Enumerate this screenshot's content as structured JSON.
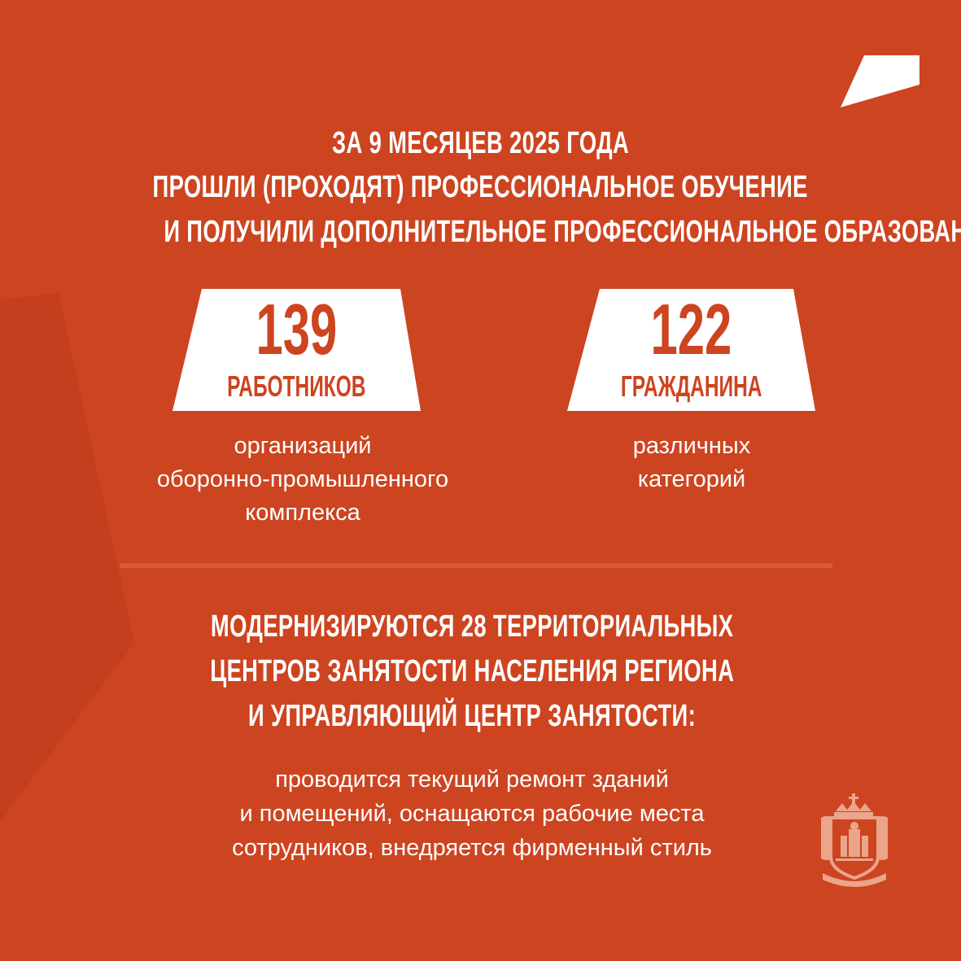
{
  "colors": {
    "background": "#cd4420",
    "accent_white": "#ffffff",
    "emblem": "#eaa58a"
  },
  "heading_1": [
    "ЗА 9 МЕСЯЦЕВ 2025 ГОДА",
    "ПРОШЛИ (ПРОХОДЯТ) ПРОФЕССИОНАЛЬНОЕ ОБУЧЕНИЕ",
    "И ПОЛУЧИЛИ ДОПОЛНИТЕЛЬНОЕ ПРОФЕССИОНАЛЬНОЕ ОБРАЗОВАНИЕ:"
  ],
  "stats": [
    {
      "value": "139",
      "unit": "РАБОТНИКОВ",
      "description": [
        "организаций",
        "оборонно-промышленного",
        "комплекса"
      ]
    },
    {
      "value": "122",
      "unit": "ГРАЖДАНИНА",
      "description": [
        "различных",
        "категорий"
      ]
    }
  ],
  "heading_2": [
    "МОДЕРНИЗИРУЮТСЯ 28 ТЕРРИТОРИАЛЬНЫХ",
    "ЦЕНТРОВ ЗАНЯТОСТИ НАСЕЛЕНИЯ РЕГИОНА",
    "И УПРАВЛЯЮЩИЙ ЦЕНТР ЗАНЯТОСТИ:"
  ],
  "body_2": [
    "проводится текущий ремонт зданий",
    "и помещений, оснащаются рабочие места",
    "сотрудников, внедряется фирменный стиль"
  ],
  "icons": {
    "logo": "regional-coat-of-arms-icon",
    "corner": "corner-flag-shape"
  }
}
